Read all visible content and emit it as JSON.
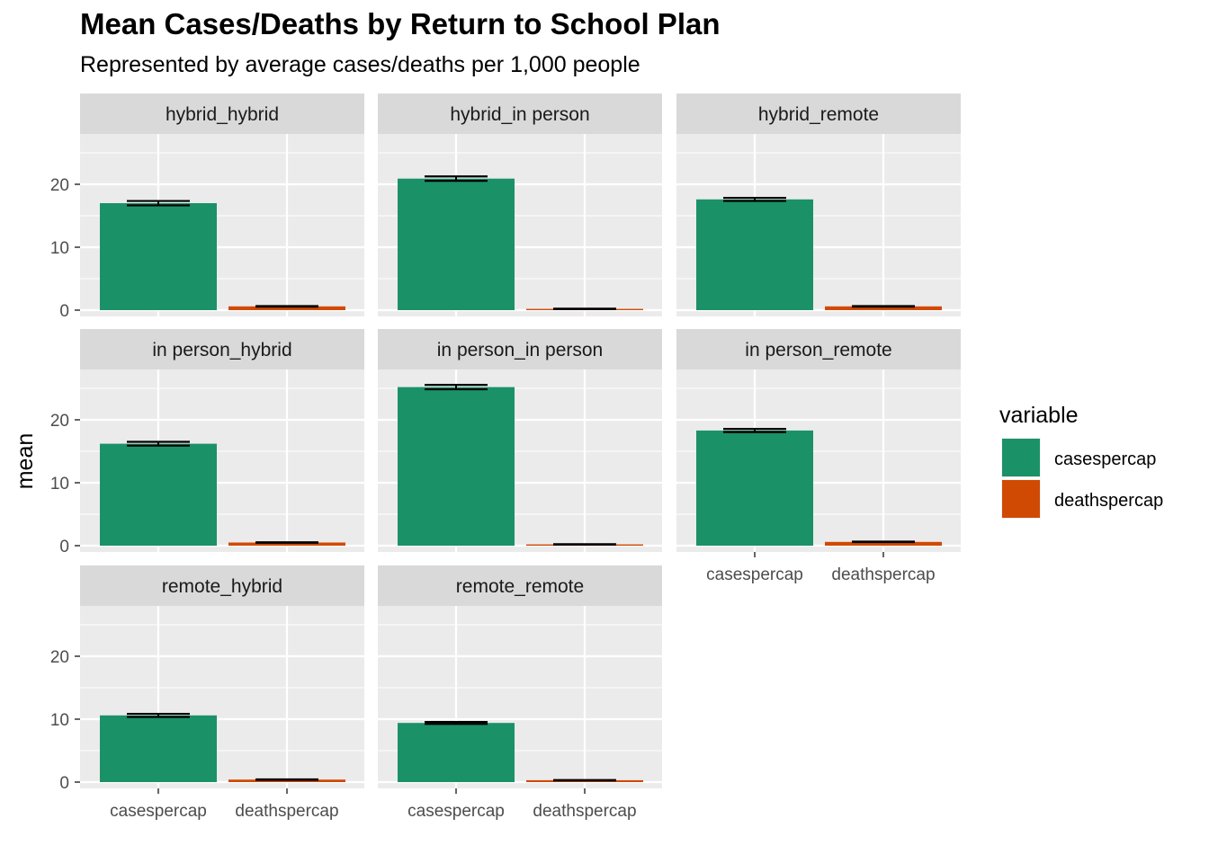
{
  "title": "Mean Cases/Deaths by Return to School Plan",
  "subtitle": "Represented by average cases/deaths per 1,000 people",
  "chart_data": {
    "type": "bar",
    "facet_type": "wrap",
    "ylabel": "mean",
    "xlabel": "",
    "ylim": [
      0,
      27
    ],
    "y_ticks": [
      0,
      10,
      20
    ],
    "categories": [
      "casespercap",
      "deathspercap"
    ],
    "grid": true,
    "legend": {
      "title": "variable",
      "placement": "right",
      "entries": [
        {
          "label": "casespercap",
          "color": "#1b9168"
        },
        {
          "label": "deathspercap",
          "color": "#d04a04"
        }
      ]
    },
    "facets": [
      {
        "name": "hybrid_hybrid",
        "values": [
          17.0,
          0.6
        ],
        "error": [
          0.35,
          0.05
        ]
      },
      {
        "name": "hybrid_in person",
        "values": [
          20.9,
          0.2
        ],
        "error": [
          0.35,
          0.03
        ]
      },
      {
        "name": "hybrid_remote",
        "values": [
          17.6,
          0.6
        ],
        "error": [
          0.25,
          0.05
        ]
      },
      {
        "name": "in person_hybrid",
        "values": [
          16.2,
          0.5
        ],
        "error": [
          0.3,
          0.04
        ]
      },
      {
        "name": "in person_in person",
        "values": [
          25.2,
          0.2
        ],
        "error": [
          0.35,
          0.03
        ]
      },
      {
        "name": "in person_remote",
        "values": [
          18.3,
          0.6
        ],
        "error": [
          0.25,
          0.04
        ]
      },
      {
        "name": "remote_hybrid",
        "values": [
          10.6,
          0.4
        ],
        "error": [
          0.25,
          0.04
        ]
      },
      {
        "name": "remote_remote",
        "values": [
          9.4,
          0.3
        ],
        "error": [
          0.15,
          0.03
        ]
      }
    ]
  }
}
